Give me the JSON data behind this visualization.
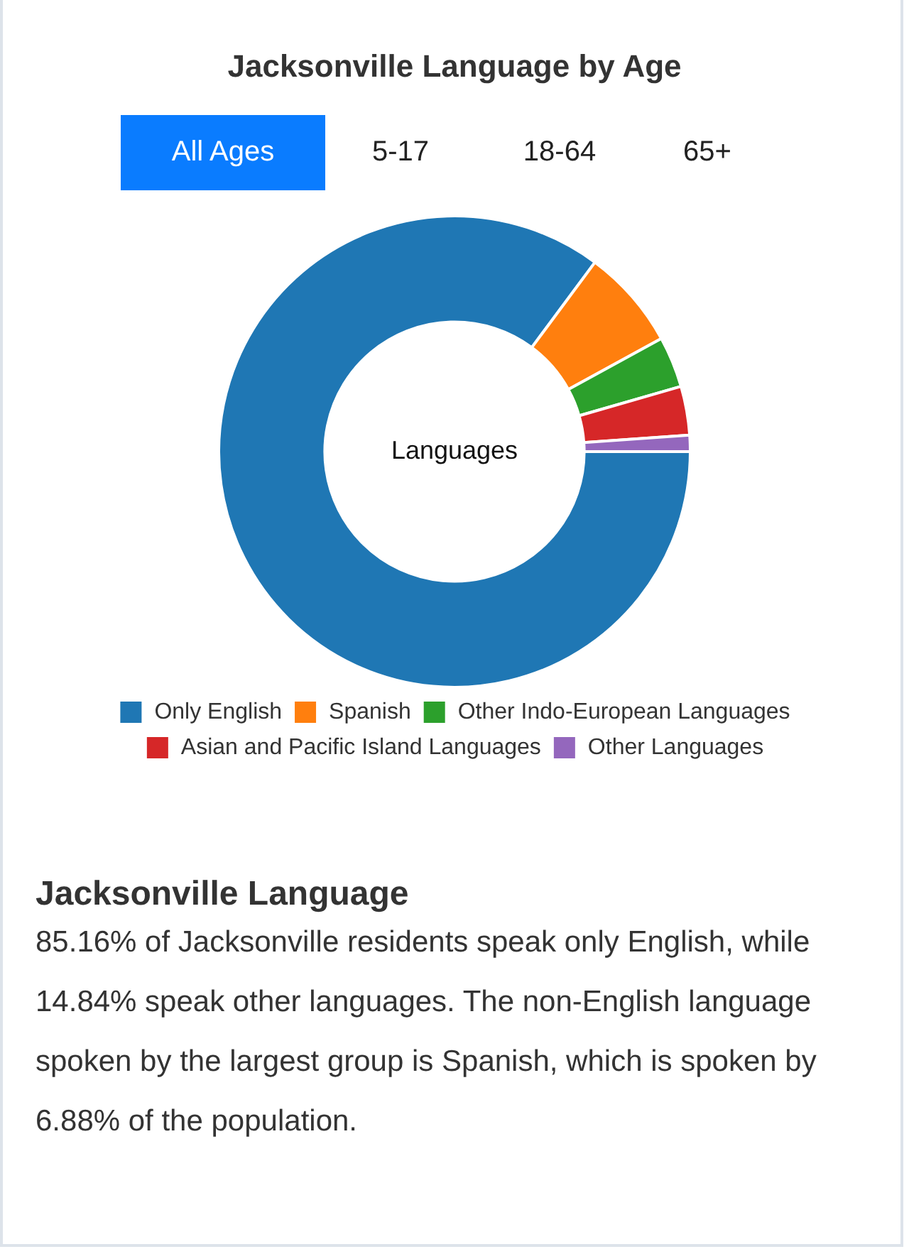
{
  "chart_data": {
    "type": "donut",
    "title": "Jacksonville Language by Age",
    "categories": [
      "Only English",
      "Spanish",
      "Other Indo-European Languages",
      "Asian and Pacific Island Languages",
      "Other Languages"
    ],
    "values": [
      85.16,
      6.88,
      3.5,
      3.35,
      1.11
    ],
    "colors": [
      "#1f77b4",
      "#ff7f0e",
      "#2ca02c",
      "#d62728",
      "#9467bd"
    ],
    "legend": "bottom",
    "annotations": [
      "All Ages",
      "5-17",
      "18-64",
      "65+",
      "Languages",
      "Jacksonville Language",
      "85.16% of Jacksonville residents speak only English, while 14.84% speak other languages. The non-English language spoken by the largest group is Spanish, which is spoken by 6.88% of the population."
    ]
  }
}
